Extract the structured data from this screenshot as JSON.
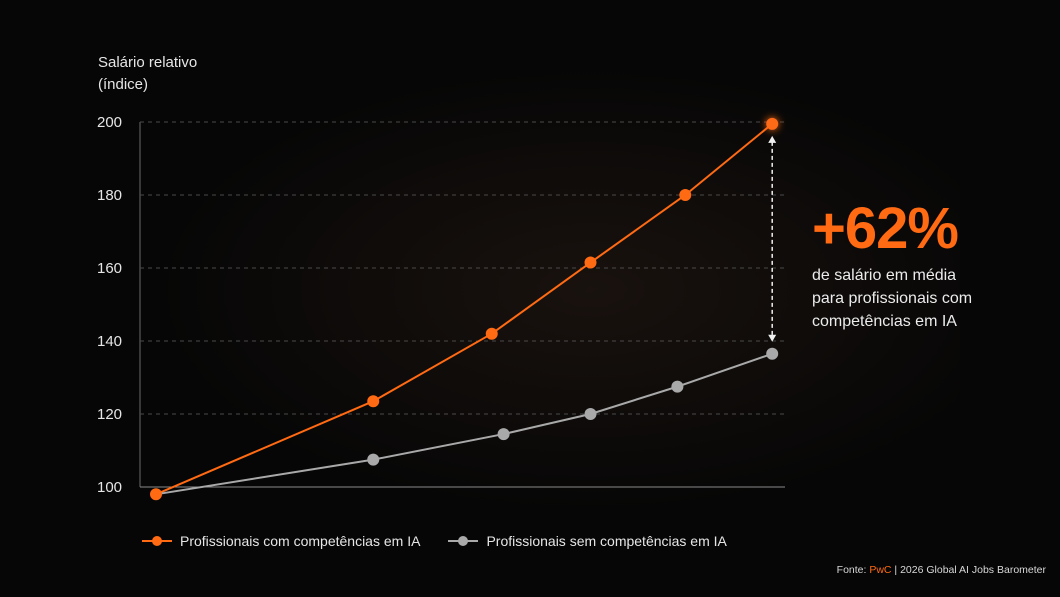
{
  "chart_data": {
    "type": "line",
    "ylabel": [
      "Salário relativo",
      "(índice)"
    ],
    "ylim": [
      100,
      200
    ],
    "yticks": [
      100,
      120,
      140,
      160,
      180,
      200
    ],
    "grid": true,
    "series": [
      {
        "name": "Profissionais com competências em IA",
        "color": "#ff6a13",
        "points": [
          [
            0,
            98
          ],
          [
            2.75,
            123.5
          ],
          [
            4.25,
            142
          ],
          [
            5.5,
            161.5
          ],
          [
            6.7,
            180
          ],
          [
            7.8,
            199.5
          ]
        ]
      },
      {
        "name": "Profissionais sem competências em IA",
        "color": "#a9a9a9",
        "points": [
          [
            0,
            98
          ],
          [
            2.75,
            107.5
          ],
          [
            4.4,
            114.5
          ],
          [
            5.5,
            120
          ],
          [
            6.6,
            127.5
          ],
          [
            7.8,
            136.5
          ]
        ]
      }
    ],
    "annotation": {
      "value": "+62%",
      "text": [
        "de salário em média",
        "para profissionais com",
        "competências em IA"
      ]
    },
    "legend_position": "bottom-left"
  },
  "source": {
    "prefix": "Fonte: ",
    "brand": "PwC",
    "rest": " | 2026 Global AI Jobs Barometer"
  }
}
